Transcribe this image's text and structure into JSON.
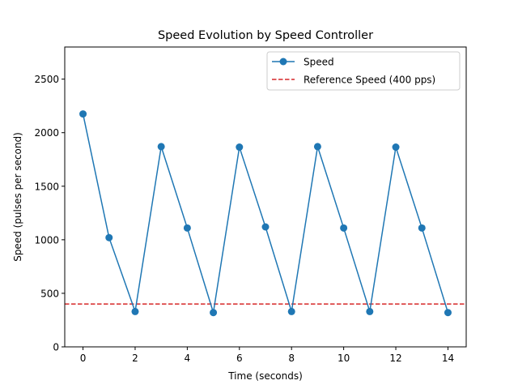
{
  "chart_data": {
    "type": "line",
    "title": "Speed Evolution by Speed Controller",
    "xlabel": "Time (seconds)",
    "ylabel": "Speed (pulses per second)",
    "xlim": [
      -0.7,
      14.7
    ],
    "ylim": [
      0,
      2800
    ],
    "xticks": [
      0,
      2,
      4,
      6,
      8,
      10,
      12,
      14
    ],
    "yticks": [
      0,
      500,
      1000,
      1500,
      2000,
      2500
    ],
    "grid": false,
    "legend_position": "upper right",
    "series": [
      {
        "name": "Speed",
        "style": "solid line with circle markers",
        "color": "#1f77b4",
        "x": [
          0,
          1,
          2,
          3,
          4,
          5,
          6,
          7,
          8,
          9,
          10,
          11,
          12,
          13,
          14
        ],
        "y": [
          2175,
          1020,
          330,
          1870,
          1110,
          320,
          1865,
          1120,
          330,
          1870,
          1110,
          330,
          1865,
          1110,
          320
        ]
      }
    ],
    "reference_lines": [
      {
        "name": "Reference Speed (400 pps)",
        "style": "dashed",
        "color": "#d62728",
        "y": 400
      }
    ]
  }
}
